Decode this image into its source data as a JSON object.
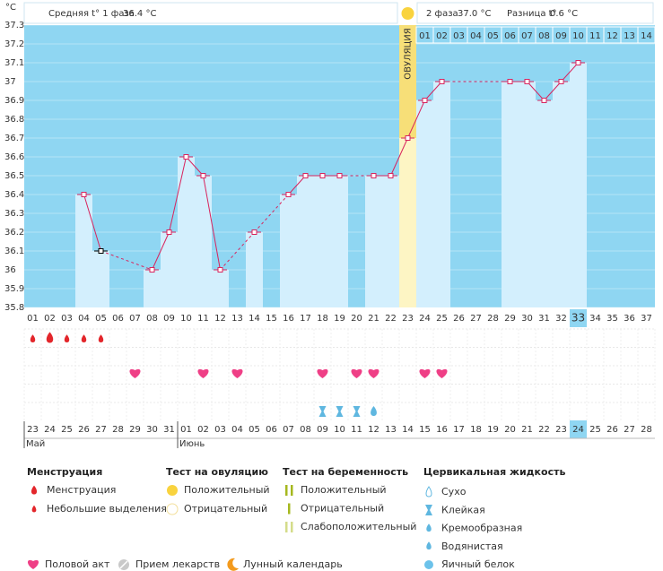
{
  "chart_data": {
    "type": "line",
    "y_unit": "°C",
    "header": {
      "phase1_label": "Средняя t° 1 фаза",
      "phase1_value": "36.4 °C",
      "phase2_label": "2 фаза",
      "phase2_value": "37.0 °C",
      "diff_label": "Разница t°",
      "diff_value": "0.6 °C"
    },
    "ovulation_label": "ОВУЛЯЦИЯ",
    "ovulation_day": 23,
    "current_day": 33,
    "categories": [
      "01",
      "02",
      "03",
      "04",
      "05",
      "06",
      "07",
      "08",
      "09",
      "10",
      "11",
      "12",
      "13",
      "14",
      "15",
      "16",
      "17",
      "18",
      "19",
      "20",
      "21",
      "22",
      "23",
      "24",
      "25",
      "26",
      "27",
      "28",
      "29",
      "30",
      "31",
      "32",
      "33",
      "34",
      "35",
      "36",
      "37"
    ],
    "phase2_days": [
      "01",
      "02",
      "03",
      "04",
      "05",
      "06",
      "07",
      "08",
      "09",
      "10",
      "11",
      "12",
      "13",
      "14"
    ],
    "values": [
      null,
      null,
      null,
      36.4,
      36.1,
      null,
      null,
      36.0,
      36.2,
      36.6,
      36.5,
      36.0,
      null,
      36.2,
      null,
      36.4,
      36.5,
      36.5,
      36.5,
      null,
      36.5,
      36.5,
      36.7,
      36.9,
      37.0,
      null,
      null,
      null,
      37.0,
      37.0,
      36.9,
      37.0,
      37.1,
      null,
      null,
      null,
      null
    ],
    "ylim": [
      35.8,
      37.3
    ],
    "yticks": [
      37.3,
      37.2,
      37.1,
      37,
      36.9,
      36.8,
      36.7,
      36.6,
      36.5,
      36.4,
      36.3,
      36.2,
      36.1,
      36,
      35.9,
      35.8
    ],
    "line_color": "#d8245e",
    "bar_color": "#d3effd",
    "background": "#8fd6f2",
    "dates": [
      "23",
      "24",
      "25",
      "26",
      "27",
      "28",
      "29",
      "30",
      "31",
      "01",
      "02",
      "03",
      "04",
      "05",
      "06",
      "07",
      "08",
      "09",
      "10",
      "11",
      "12",
      "13",
      "14",
      "15",
      "16",
      "17",
      "18",
      "19",
      "20",
      "21",
      "22",
      "23",
      "24",
      "25",
      "26",
      "27",
      "28"
    ],
    "weekend_dates": [
      5,
      6,
      12,
      13,
      19,
      20,
      26,
      27,
      33,
      34
    ],
    "months": [
      {
        "index": 0,
        "label": "Май"
      },
      {
        "index": 9,
        "label": "Июнь"
      }
    ],
    "events": {
      "menstruation": [
        1,
        3,
        4,
        5
      ],
      "menstruation_heavy": [
        2
      ],
      "intercourse": [
        7,
        11,
        13,
        18,
        20,
        21,
        24,
        25
      ],
      "sticky": [
        18,
        19,
        20
      ],
      "watery": [
        21
      ]
    }
  },
  "legend": {
    "menstruation": {
      "title": "Менструация",
      "items": [
        "Менструация",
        "Небольшие выделения"
      ]
    },
    "ovulation_test": {
      "title": "Тест на овуляцию",
      "items": [
        "Положительный",
        "Отрицательный"
      ]
    },
    "pregnancy_test": {
      "title": "Тест на беременность",
      "items": [
        "Положительный",
        "Отрицательный",
        "Слабоположительный"
      ]
    },
    "cervical": {
      "title": "Цервикальная жидкость",
      "items": [
        "Сухо",
        "Клейкая",
        "Кремообразная",
        "Водянистая",
        "Яичный белок"
      ]
    },
    "other": [
      "Половой акт",
      "Прием лекарств",
      "Лунный календарь"
    ]
  }
}
